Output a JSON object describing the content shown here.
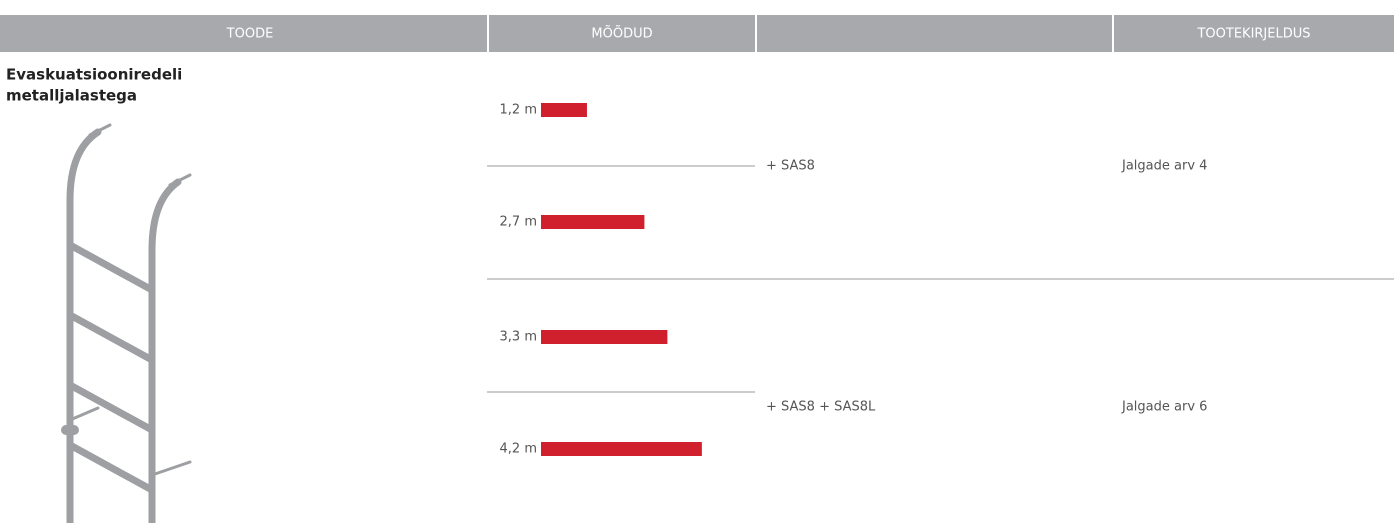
{
  "header": {
    "product": "TOODE",
    "dimensions": "MÕÕDUD",
    "description": "TOOTEKIRJELDUS"
  },
  "product": {
    "name_lines": [
      "Evaskuatsiooniredeli",
      "metalljalastega"
    ]
  },
  "groups": [
    {
      "lengths": [
        {
          "value": 1.2,
          "label": "1,2 m"
        },
        {
          "value": 2.7,
          "label": "2,7 m"
        }
      ],
      "addon": "+ SAS8",
      "description": "Jalgade arv 4"
    },
    {
      "lengths": [
        {
          "value": 3.3,
          "label": "3,3 m"
        },
        {
          "value": 4.2,
          "label": "4,2 m"
        }
      ],
      "addon": "+ SAS8 + SAS8L",
      "description": "Jalgade arv 6"
    }
  ],
  "bar_color": "#d0202e"
}
